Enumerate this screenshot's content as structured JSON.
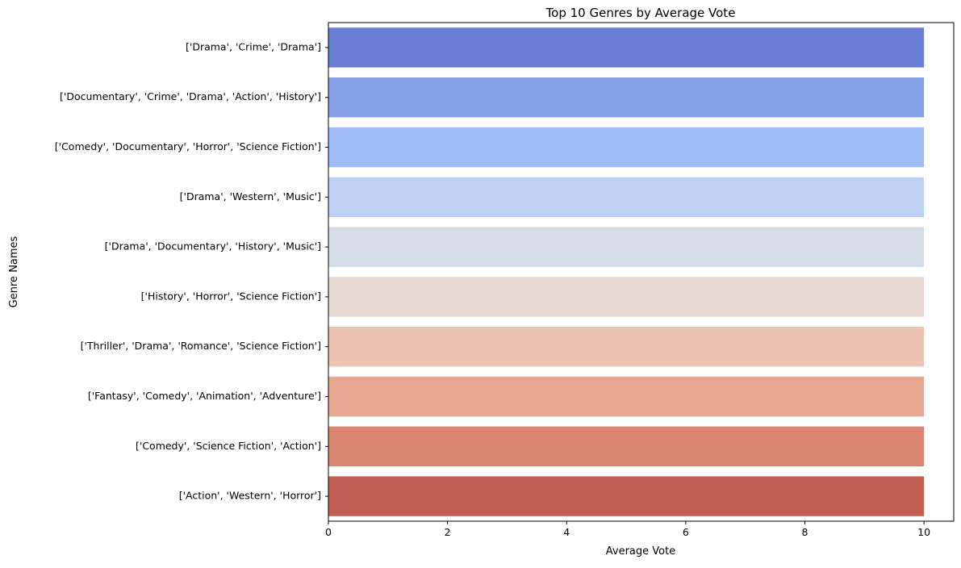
{
  "chart_data": {
    "type": "bar",
    "orientation": "horizontal",
    "title": "Top 10 Genres by Average Vote",
    "xlabel": "Average Vote",
    "ylabel": "Genre Names",
    "xlim": [
      0,
      10.5
    ],
    "xticks": [
      "0",
      "2",
      "4",
      "6",
      "8",
      "10"
    ],
    "grid": false,
    "categories": [
      "['Drama', 'Crime', 'Drama']",
      "['Documentary', 'Crime', 'Drama', 'Action', 'History']",
      "['Comedy', 'Documentary', 'Horror', 'Science Fiction']",
      "['Drama', 'Western', 'Music']",
      "['Drama', 'Documentary', 'History', 'Music']",
      "['History', 'Horror', 'Science Fiction']",
      "['Thriller', 'Drama', 'Romance', 'Science Fiction']",
      "['Fantasy', 'Comedy', 'Animation', 'Adventure']",
      "['Comedy', 'Science Fiction', 'Action']",
      "['Action', 'Western', 'Horror']"
    ],
    "values": [
      10,
      10,
      10,
      10,
      10,
      10,
      10,
      10,
      10,
      10
    ],
    "colors": [
      "#6a7fd4",
      "#86a0e5",
      "#a1bcf5",
      "#bdd0f3",
      "#d5dbe6",
      "#e5d7cf",
      "#ebc3b0",
      "#e6a890",
      "#d98571",
      "#c15f53"
    ]
  }
}
